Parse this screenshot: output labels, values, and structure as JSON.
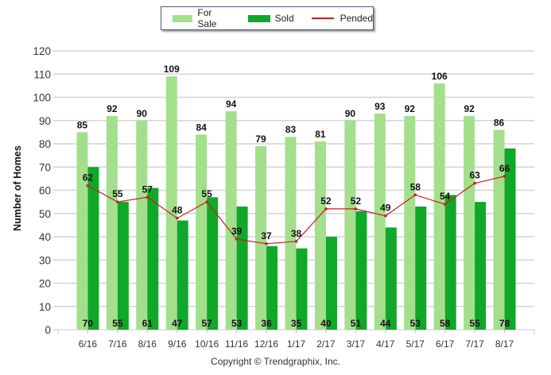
{
  "chart_data": {
    "type": "bar",
    "title": "",
    "xlabel": "",
    "ylabel": "Number of Homes",
    "ylim": [
      0,
      120
    ],
    "yticks": [
      0,
      10,
      20,
      30,
      40,
      50,
      60,
      70,
      80,
      90,
      100,
      110,
      120
    ],
    "grid": true,
    "legend_position": "top-center",
    "categories": [
      "6/16",
      "7/16",
      "8/16",
      "9/16",
      "10/16",
      "11/16",
      "12/16",
      "1/17",
      "2/17",
      "3/17",
      "4/17",
      "5/17",
      "6/17",
      "7/17",
      "8/17"
    ],
    "series": [
      {
        "name": "For Sale",
        "type": "bar",
        "color": "#a3df8c",
        "values": [
          85,
          92,
          90,
          109,
          84,
          94,
          79,
          83,
          81,
          90,
          93,
          92,
          106,
          92,
          86
        ]
      },
      {
        "name": "Sold",
        "type": "bar",
        "color": "#0fa828",
        "values": [
          70,
          55,
          61,
          47,
          57,
          53,
          36,
          35,
          40,
          51,
          44,
          53,
          58,
          55,
          78
        ]
      },
      {
        "name": "Pended",
        "type": "line",
        "color": "#cc1f1f",
        "values": [
          62,
          55,
          57,
          48,
          55,
          39,
          37,
          38,
          52,
          52,
          49,
          58,
          54,
          63,
          66
        ]
      }
    ]
  },
  "legend": {
    "for_sale": "For Sale",
    "sold": "Sold",
    "pended": "Pended"
  },
  "footer": {
    "copyright": "Copyright © Trendgraphix, Inc."
  }
}
